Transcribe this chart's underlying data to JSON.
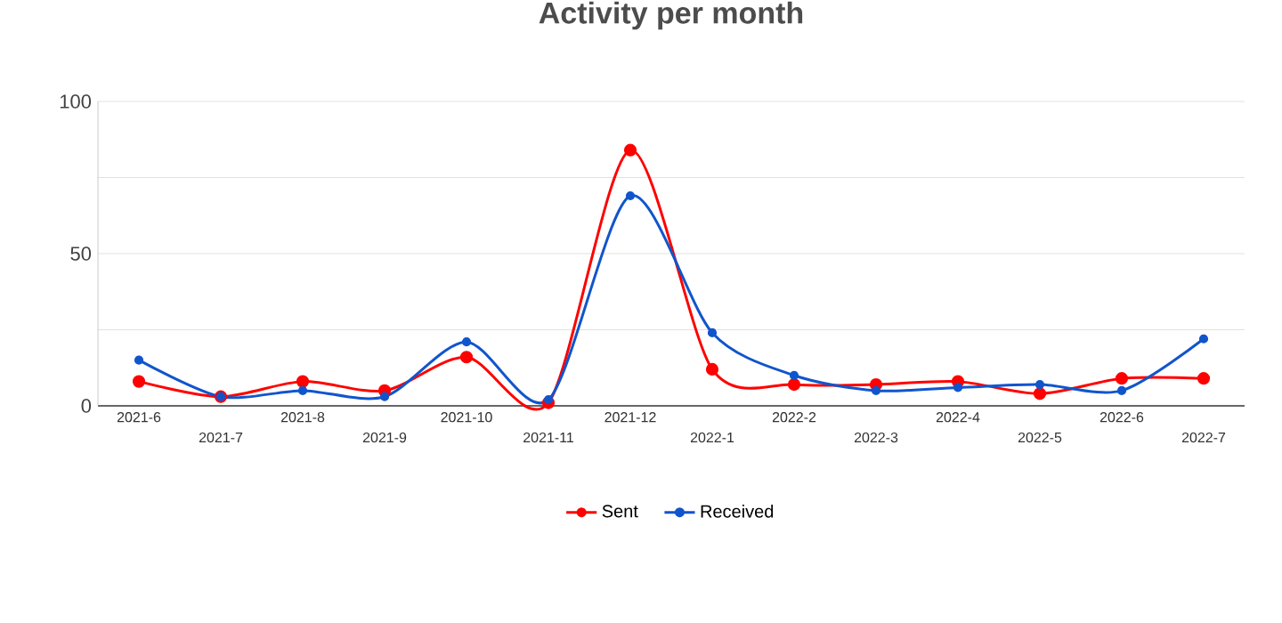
{
  "chart_data": {
    "type": "line",
    "title": "Activity per month",
    "categories": [
      "2021-6",
      "2021-7",
      "2021-8",
      "2021-9",
      "2021-10",
      "2021-11",
      "2021-12",
      "2022-1",
      "2022-2",
      "2022-3",
      "2022-4",
      "2022-5",
      "2022-6",
      "2022-7"
    ],
    "series": [
      {
        "name": "Sent",
        "color": "#ff0000",
        "values": [
          8,
          3,
          8,
          5,
          16,
          1,
          84,
          12,
          7,
          7,
          8,
          4,
          9,
          9
        ]
      },
      {
        "name": "Received",
        "color": "#1155cc",
        "values": [
          15,
          3,
          5,
          3,
          21,
          2,
          69,
          24,
          10,
          5,
          6,
          7,
          5,
          22
        ]
      }
    ],
    "ylim": [
      0,
      100
    ],
    "yticks": [
      0,
      {
        "value": 25,
        "label": null
      },
      50,
      {
        "value": 75,
        "label": null
      },
      100
    ],
    "grid": "y",
    "legend": "bottom",
    "marker": "circle",
    "line_style": "solid"
  }
}
